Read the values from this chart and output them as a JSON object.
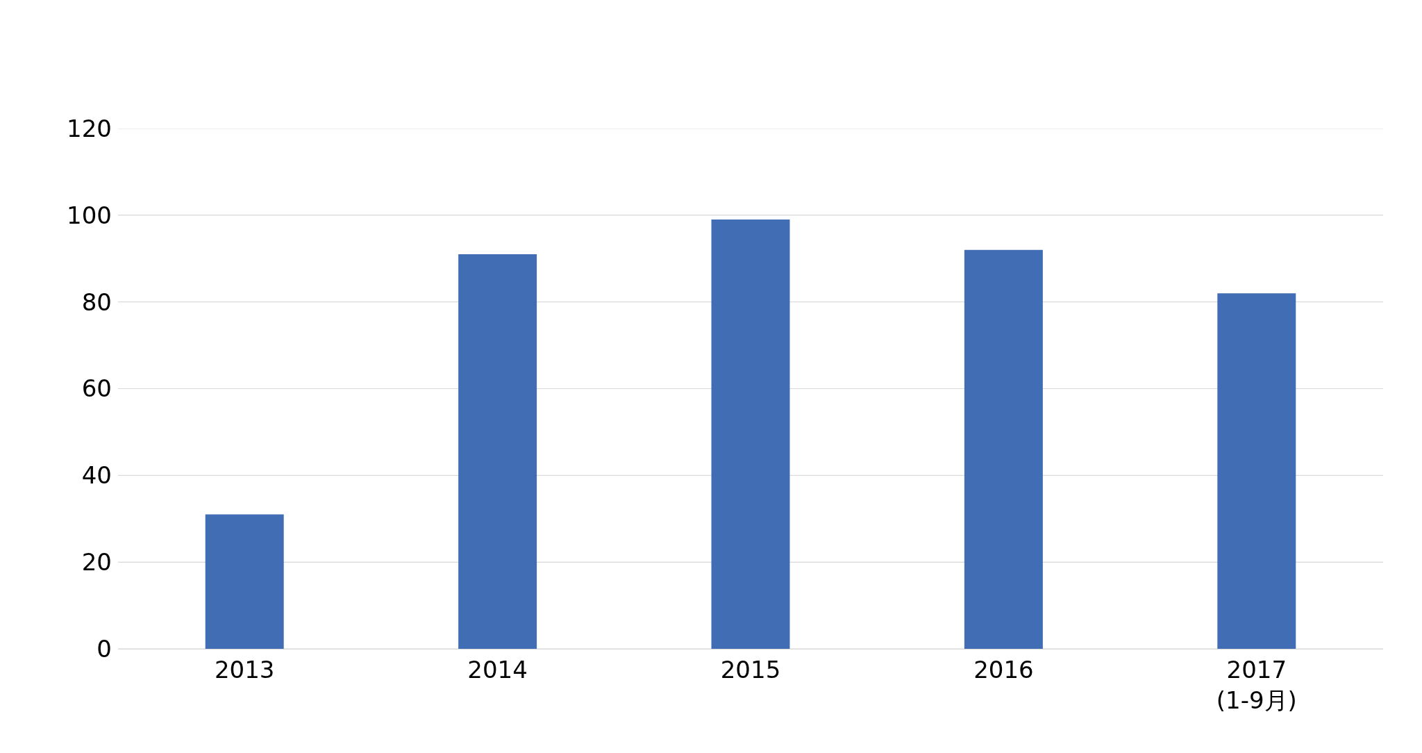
{
  "chart_data": {
    "type": "bar",
    "categories": [
      "2013",
      "2014",
      "2015",
      "2016",
      "2017\n(1-9月)"
    ],
    "values": [
      31,
      91,
      99,
      92,
      82
    ],
    "color": "#416db5",
    "ylim": [
      0,
      120
    ],
    "yticks": [
      0,
      20,
      40,
      60,
      80,
      100,
      120
    ],
    "grid": "y"
  }
}
